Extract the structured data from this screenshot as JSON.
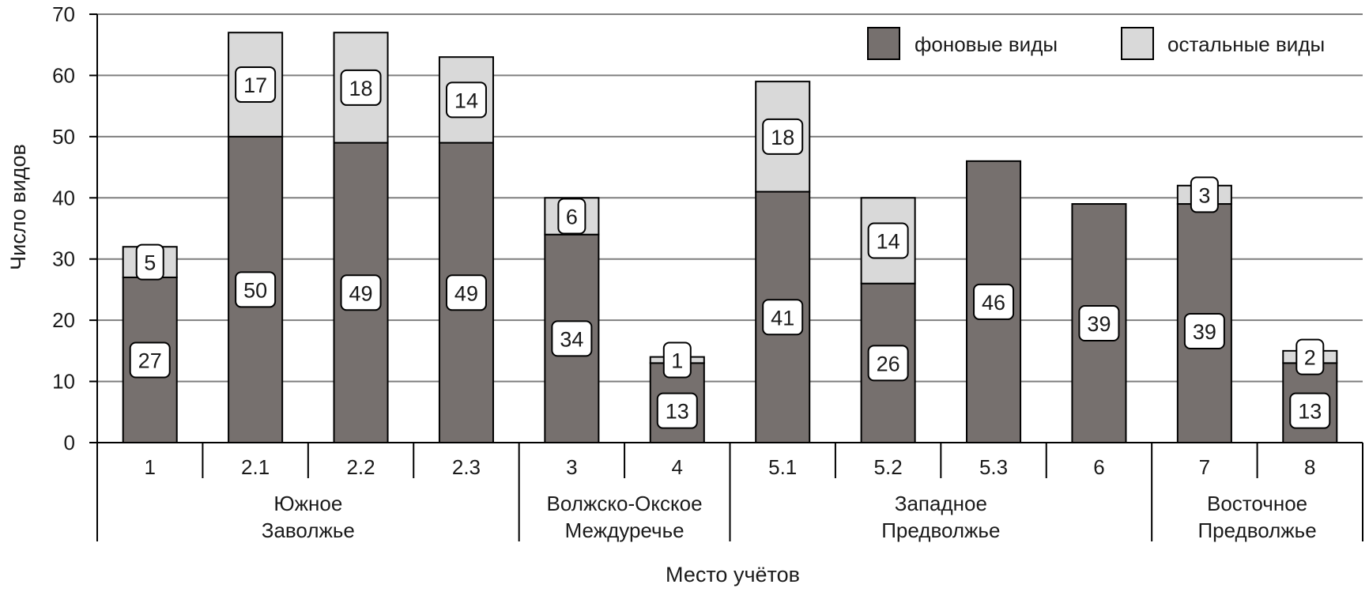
{
  "chart_data": {
    "type": "bar",
    "stacked": true,
    "categories": [
      "1",
      "2.1",
      "2.2",
      "2.3",
      "3",
      "4",
      "5.1",
      "5.2",
      "5.3",
      "6",
      "7",
      "8"
    ],
    "groups": [
      {
        "label_lines": [
          "Южное",
          "Заволжье"
        ],
        "categories": [
          "1",
          "2.1",
          "2.2",
          "2.3"
        ]
      },
      {
        "label_lines": [
          "Волжско-Окское",
          "Междуречье"
        ],
        "categories": [
          "3",
          "4"
        ]
      },
      {
        "label_lines": [
          "Западное",
          "Предволжье"
        ],
        "categories": [
          "5.1",
          "5.2",
          "5.3",
          "6"
        ]
      },
      {
        "label_lines": [
          "Восточное",
          "Предволжье"
        ],
        "categories": [
          "7",
          "8"
        ]
      }
    ],
    "series": [
      {
        "name": "фоновые виды",
        "color": "#76706e",
        "values": [
          27,
          50,
          49,
          49,
          34,
          13,
          41,
          26,
          46,
          39,
          39,
          13
        ]
      },
      {
        "name": "остальные виды",
        "color": "#d9d9d9",
        "values": [
          5,
          17,
          18,
          14,
          6,
          1,
          18,
          14,
          0,
          0,
          3,
          2
        ]
      }
    ],
    "title": "",
    "xlabel": "Место учётов",
    "ylabel": "Число видов",
    "ylim": [
      0,
      70
    ],
    "yticks": [
      0,
      10,
      20,
      30,
      40,
      50,
      60,
      70
    ],
    "grid": true,
    "legend_position": "top-right"
  }
}
